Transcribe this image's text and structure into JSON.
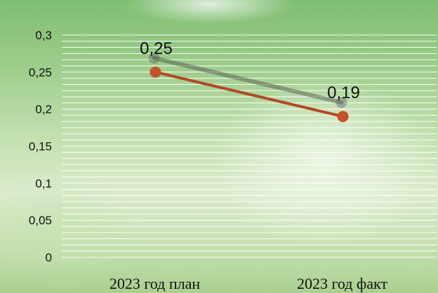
{
  "chart_data": {
    "type": "line",
    "categories": [
      "2023 год план",
      "2023 год факт"
    ],
    "values": [
      0.25,
      0.19
    ],
    "data_labels": [
      "0,25",
      "0,19"
    ],
    "ylim": [
      0,
      0.3
    ],
    "yticks": [
      0,
      0.05,
      0.1,
      0.15,
      0.2,
      0.25,
      0.3
    ],
    "ytick_labels": [
      "0",
      "0,05",
      "0,1",
      "0,15",
      "0,2",
      "0,25",
      "0,3"
    ],
    "title": "",
    "xlabel": "",
    "ylabel": "",
    "grid": true,
    "legend": "none",
    "colors": {
      "line": "#b34a26",
      "marker": "#c8502a",
      "gridline": "#ffffff",
      "shadow": "#4a4a4a"
    }
  }
}
